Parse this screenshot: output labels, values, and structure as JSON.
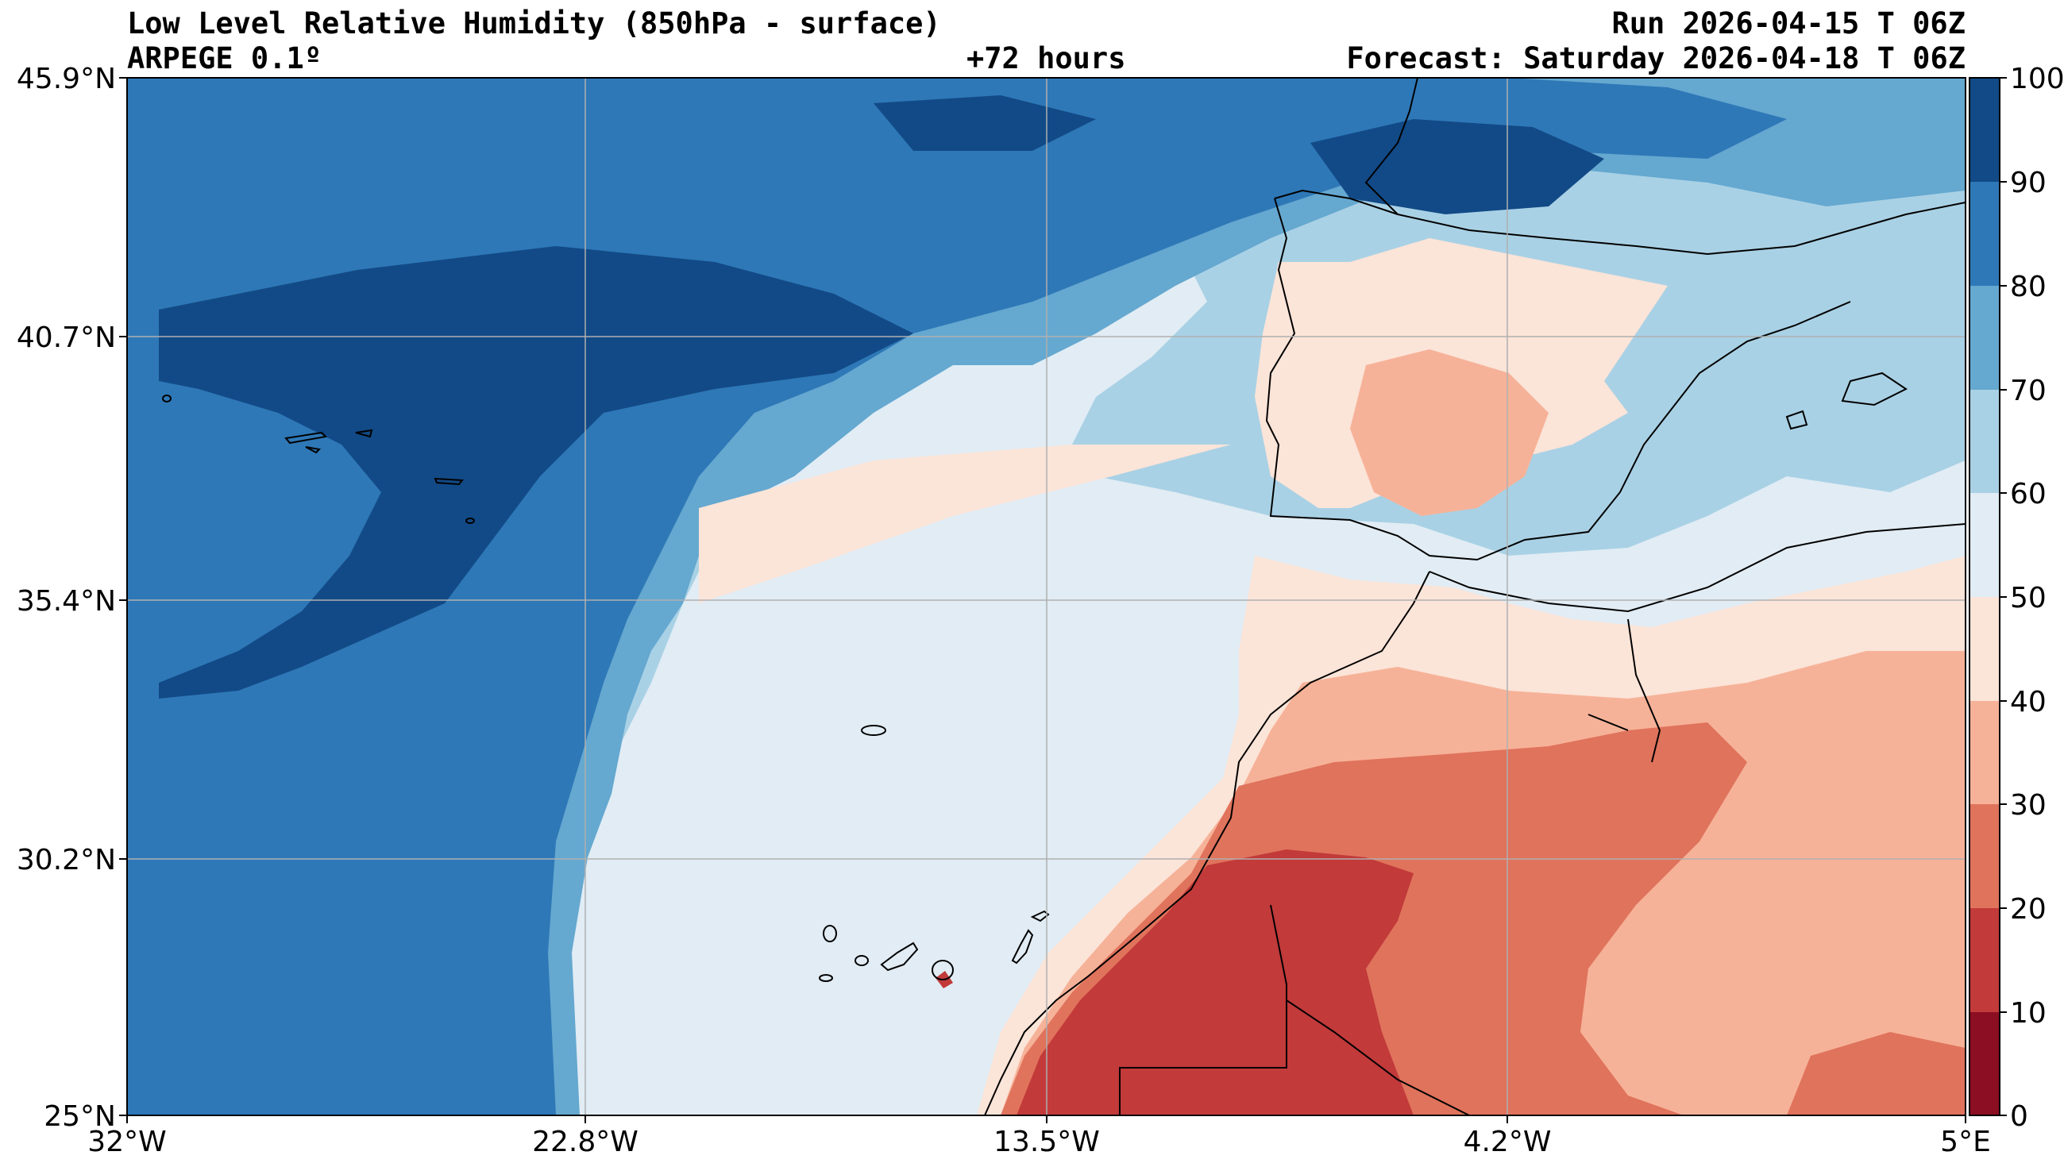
{
  "header": {
    "title": "Low Level Relative Humidity (850hPa - surface)",
    "model": "ARPEGE 0.1º",
    "lead": "+72 hours",
    "run": "Run 2026-04-15 T 06Z",
    "forecast": "Forecast: Saturday 2026-04-18 T 06Z"
  },
  "axes": {
    "lat_labels": [
      "45.9°N",
      "40.7°N",
      "35.4°N",
      "30.2°N",
      "25°N"
    ],
    "lon_labels": [
      "32°W",
      "22.8°W",
      "13.5°W",
      "4.2°W",
      "5°E"
    ]
  },
  "colorbar": {
    "labels": [
      "100",
      "90",
      "80",
      "70",
      "60",
      "50",
      "40",
      "30",
      "20",
      "10",
      "0"
    ],
    "colors": [
      "#124a87",
      "#2e78b7",
      "#65a8d0",
      "#a9d1e5",
      "#e1ecf4",
      "#fbe4d8",
      "#f6b298",
      "#e0735c",
      "#c23a3a",
      "#8b0e22"
    ]
  },
  "legend_colors": {
    "land_line": "#000000",
    "grid": "#b0b0b0"
  }
}
